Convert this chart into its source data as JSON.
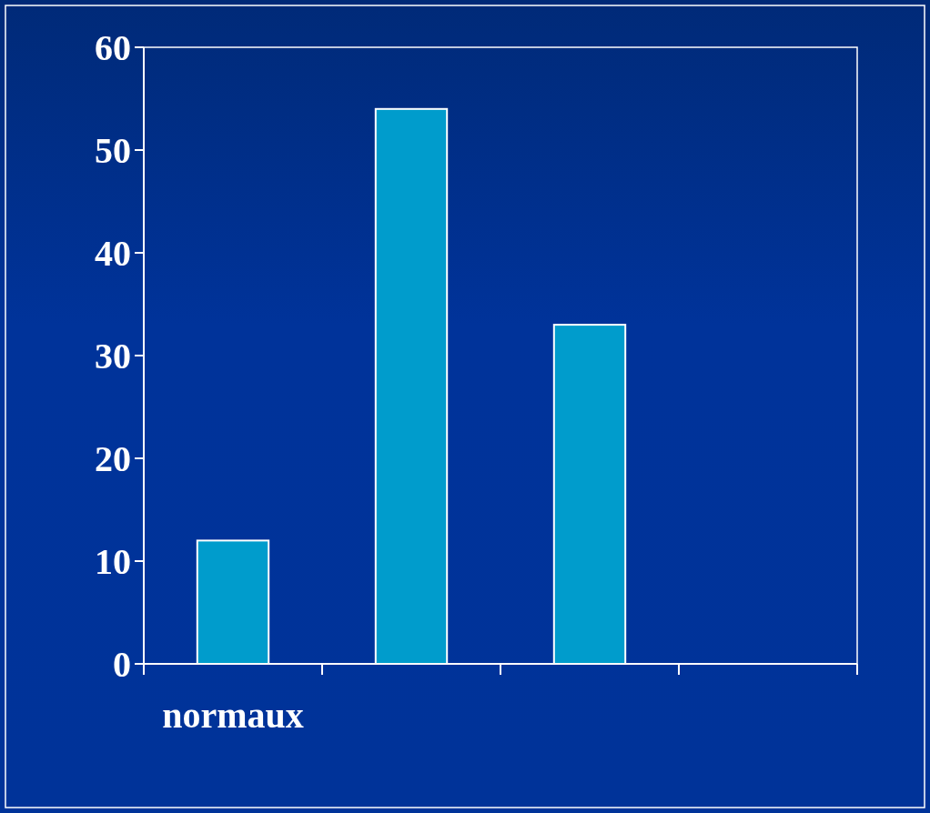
{
  "chart_data": {
    "type": "bar",
    "categories": [
      "normaux",
      null,
      null,
      null
    ],
    "values": [
      12,
      54,
      33,
      null
    ],
    "color": "#009ccc",
    "ylim": [
      0,
      60
    ],
    "yticks": [
      0,
      10,
      20,
      30,
      40,
      50,
      60
    ],
    "grid": false
  }
}
